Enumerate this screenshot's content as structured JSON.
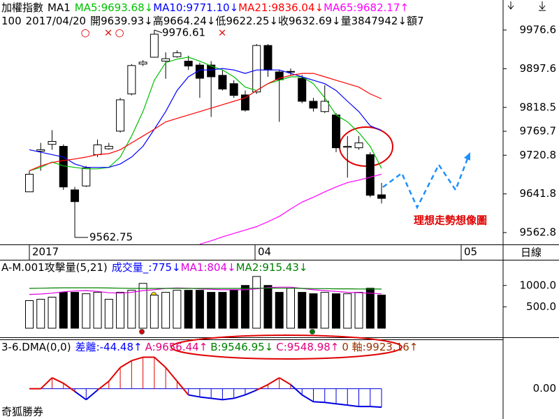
{
  "chart_data": [
    {
      "type": "candlestick",
      "title": "加權指數",
      "subtitle": "MA1",
      "info": {
        "code": "100",
        "date": "2017/04/20",
        "labels": [
          "開",
          "高",
          "低",
          "收"
        ],
        "arrows": [
          "↓",
          "↓",
          "↓",
          "↓"
        ],
        "volume_label": "量",
        "volume": 3847942,
        "volume_arrow": "↓",
        "amount_label": "額7"
      },
      "candles": {
        "open": [
          9646,
          9729,
          9743,
          9739,
          9650,
          9658,
          9722,
          9734,
          9770,
          9846,
          9907,
          9921,
          9913,
          9922,
          9913,
          9905,
          9905,
          9884,
          9867,
          9844,
          9850,
          9945,
          9891,
          9891,
          9878,
          9831,
          9810,
          9803,
          9737,
          9736,
          9722,
          9639.93
        ],
        "high": [
          9689,
          9746,
          9772,
          9743,
          9656,
          9699,
          9753,
          9746,
          9838,
          9907,
          9915,
          9976.61,
          9931,
          9935,
          9924,
          9910,
          9913,
          9895,
          9874,
          9853,
          9948,
          9948,
          9895,
          9898,
          9885,
          9838,
          9864,
          9807,
          9760,
          9760,
          9727,
          9664.24
        ],
        "low": [
          9646,
          9689,
          9732,
          9650,
          9562.75,
          9656,
          9717,
          9732,
          9767,
          9843,
          9903,
          9920,
          9877,
          9920,
          9895,
          9838,
          9799,
          9853,
          9838,
          9810,
          9846,
          9881,
          9789,
          9884,
          9827,
          9810,
          9807,
          9727,
          9675,
          9732,
          9635,
          9622.25
        ],
        "close": [
          9682,
          9732,
          9749,
          9656,
          9626,
          9695,
          9742,
          9739,
          9834,
          9904,
          9911,
          9968,
          9918,
          9930,
          9903,
          9878,
          9881,
          9856,
          9843,
          9813,
          9945,
          9895,
          9875,
          9892,
          9831,
          9817,
          9831,
          9736,
          9739,
          9746,
          9639,
          9632.69
        ]
      },
      "up_color": "#ffffff",
      "down_color": "#000000",
      "series": [
        {
          "name": "MA5:",
          "color": "#00c000",
          "arrow": "↓",
          "values": [
            9689,
            9696,
            9707,
            9699,
            9696,
            9693,
            9693,
            9696,
            9717,
            9760,
            9810,
            9874,
            9910,
            9917,
            9921,
            9913,
            9903,
            9895,
            9881,
            9860,
            9853,
            9867,
            9874,
            9881,
            9881,
            9867,
            9838,
            9803,
            9789,
            9767,
            9739,
            9693.68
          ]
        },
        {
          "name": "MA10:",
          "color": "#0000ff",
          "arrow": "↓",
          "values": [
            9732,
            9727,
            9722,
            9717,
            9703,
            9696,
            9696,
            9696,
            9703,
            9717,
            9739,
            9774,
            9810,
            9853,
            9881,
            9895,
            9895,
            9898,
            9895,
            9888,
            9895,
            9895,
            9895,
            9888,
            9881,
            9874,
            9867,
            9853,
            9831,
            9810,
            9781,
            9771.1
          ],
          "value_labels": [
            null,
            null,
            null,
            null,
            null,
            null,
            null,
            null,
            null,
            null,
            null,
            null,
            null,
            null,
            null,
            null,
            null,
            null,
            null,
            null,
            null,
            null,
            null,
            null,
            null,
            null,
            null,
            null,
            null,
            null,
            null,
            "9771.10"
          ]
        },
        {
          "name": "MA21:",
          "color": "#ff0000",
          "arrow": "↓",
          "values": [
            9689,
            9699,
            9706,
            9710,
            9713,
            9717,
            9722,
            9724,
            9732,
            9746,
            9760,
            9774,
            9789,
            9796,
            9803,
            9810,
            9817,
            9824,
            9831,
            9838,
            9853,
            9867,
            9878,
            9884,
            9888,
            9888,
            9881,
            9874,
            9867,
            9860,
            9846,
            9836.04
          ]
        },
        {
          "name": "MA65:",
          "color": "#ff00ff",
          "arrow": "↑",
          "values": [
            null,
            null,
            null,
            null,
            null,
            null,
            null,
            null,
            null,
            null,
            null,
            null,
            null,
            null,
            null,
            9539,
            9546,
            9554,
            9561,
            9568,
            9575,
            9585,
            9596,
            9611,
            9625,
            9635,
            9646,
            9656,
            9665,
            9670,
            9676,
            9682.17
          ]
        }
      ],
      "ylim": [
        9538.6,
        10037.9
      ],
      "yticks": [
        9976.6,
        9897.6,
        9818.5,
        9769.7,
        9720.8,
        9641.8,
        9562.8
      ],
      "x_labels": [
        "2017",
        "04",
        "05"
      ],
      "period": "日線",
      "annotations": {
        "markers": [
          "○",
          "×",
          "○",
          "×"
        ],
        "hypothesis": "理想走勢想像圖"
      }
    },
    {
      "type": "bar",
      "title": "A-M.001攻擊量(5,21)",
      "series": [
        {
          "name": "成交量_:",
          "color": "#0000ff",
          "arrow": "↓",
          "values": [
            645,
            677,
            726,
            839,
            839,
            806,
            839,
            677,
            839,
            887,
            1048,
            774,
            839,
            887,
            887,
            887,
            839,
            839,
            887,
            1000,
            1210,
            1000,
            839,
            935,
            839,
            806,
            839,
            806,
            806,
            839,
            935,
            775
          ]
        },
        {
          "name": "MA1:",
          "color": "#e000e0",
          "arrow": "↓",
          "values": [
            790,
            800,
            820,
            850,
            870,
            880,
            860,
            830,
            820,
            840,
            880,
            900,
            930,
            940,
            935,
            920,
            910,
            900,
            900,
            900,
            920,
            950,
            960,
            960,
            930,
            900,
            880,
            860,
            840,
            830,
            820,
            804
          ]
        },
        {
          "name": "MA2:",
          "color": "#008000",
          "arrow": "↓",
          "values": [
            930,
            935,
            940,
            945,
            945,
            945,
            945,
            940,
            935,
            930,
            930,
            930,
            930,
            930,
            930,
            930,
            930,
            930,
            930,
            930,
            935,
            935,
            935,
            935,
            930,
            925,
            925,
            920,
            920,
            918,
            916,
            915.43
          ]
        }
      ],
      "ylim": [
        0,
        1600
      ],
      "yticks": [
        {
          "value": 500,
          "label": "500.0"
        },
        {
          "value": 1000,
          "label": "1000.0"
        }
      ]
    },
    {
      "type": "line",
      "title": "3-6.DMA(0,0)",
      "series": [
        {
          "name": "差離:",
          "color": "#0000ff",
          "arrow": "↑",
          "values": [
            0,
            0,
            26.4,
            13.2,
            -6.6,
            -26.4,
            -3.3,
            18.1,
            51.1,
            67.5,
            75.8,
            75.8,
            51.1,
            18.1,
            -14.8,
            -19.8,
            -23.1,
            -26.4,
            -23.1,
            -14.8,
            -3.3,
            9.9,
            26.4,
            9.9,
            -14.8,
            -31.3,
            -32.9,
            -36.2,
            -39.5,
            -42.8,
            -42.8,
            -44.48
          ]
        }
      ],
      "up_color": "#e00000",
      "down_color": "#0000e0",
      "indicators": [
        {
          "label": "A:",
          "value": 9656.44,
          "arrow": "↑",
          "color": "#e0007f"
        },
        {
          "label": "B:",
          "value": 9546.95,
          "arrow": "↓",
          "color": "#008000"
        },
        {
          "label": "C:",
          "value": 9548.98,
          "arrow": "↑",
          "color": "#e0007f"
        },
        {
          "label": "0 軸:",
          "value": 9923.16,
          "arrow": "↑",
          "color": "#993300"
        }
      ],
      "ylim": [
        -56,
        117
      ],
      "yticks": [
        {
          "value": 0,
          "label": "0.00"
        }
      ]
    },
    {
      "type": "text",
      "title": "奇狐勝券"
    }
  ]
}
